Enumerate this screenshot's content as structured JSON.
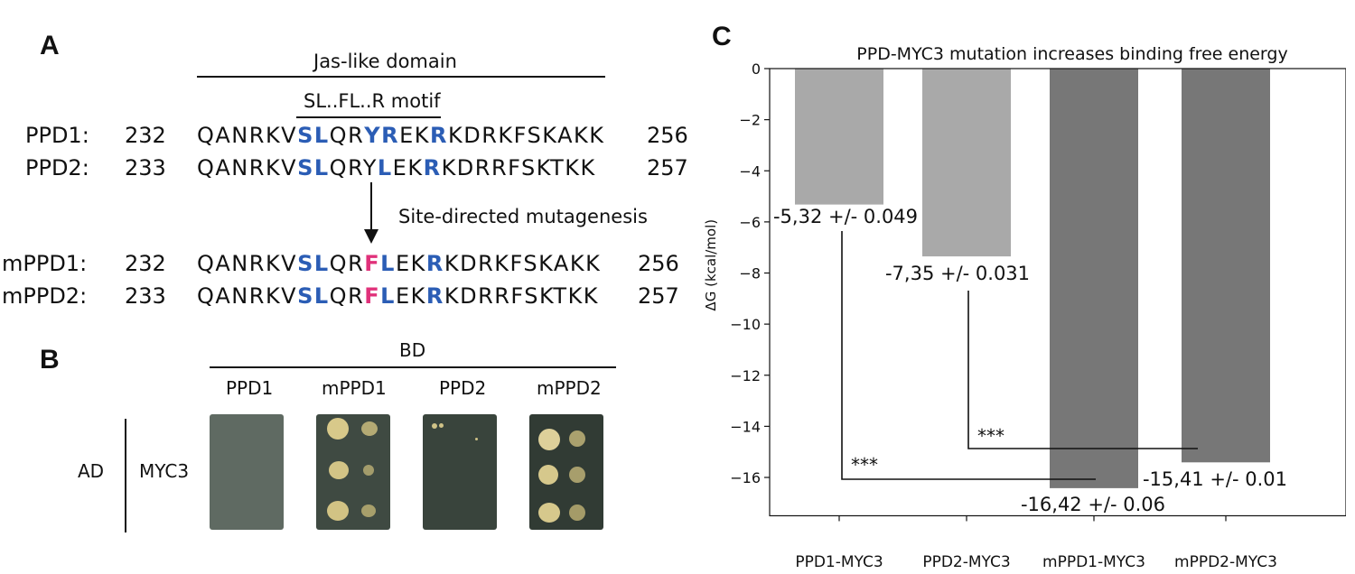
{
  "panelA": {
    "label": "A",
    "domain_label": "Jas-like domain",
    "motif_label": "SL..FL..R motif",
    "mutagenesis_label": "Site-directed mutagenesis",
    "rows": [
      {
        "name": "PPD1:",
        "start": "232",
        "end": "256",
        "segments": [
          [
            "QANRKV",
            "n"
          ],
          [
            "SL",
            "b"
          ],
          [
            "QR",
            "n"
          ],
          [
            "YR",
            "b"
          ],
          [
            "EK",
            "n"
          ],
          [
            "R",
            "b"
          ],
          [
            "KDRKFSKAKK",
            "n"
          ]
        ]
      },
      {
        "name": "PPD2:",
        "start": "233",
        "end": "257",
        "segments": [
          [
            "QANRKV",
            "n"
          ],
          [
            "SL",
            "b"
          ],
          [
            "QRY",
            "n"
          ],
          [
            "L",
            "b"
          ],
          [
            "EK",
            "n"
          ],
          [
            "R",
            "b"
          ],
          [
            "KDRRFSKTKK",
            "n"
          ]
        ]
      },
      {
        "name": "mPPD1:",
        "start": "232",
        "end": "256",
        "segments": [
          [
            "QANRKV",
            "n"
          ],
          [
            "SL",
            "b"
          ],
          [
            "QR",
            "n"
          ],
          [
            "F",
            "p"
          ],
          [
            "L",
            "b"
          ],
          [
            "EK",
            "n"
          ],
          [
            "R",
            "b"
          ],
          [
            "KDRKFSKAKK",
            "n"
          ]
        ]
      },
      {
        "name": "mPPD2:",
        "start": "233",
        "end": "257",
        "segments": [
          [
            "QANRKV",
            "n"
          ],
          [
            "SL",
            "b"
          ],
          [
            "QR",
            "n"
          ],
          [
            "F",
            "p"
          ],
          [
            "L",
            "b"
          ],
          [
            "EK",
            "n"
          ],
          [
            "R",
            "b"
          ],
          [
            "KDRRFSKTKK",
            "n"
          ]
        ]
      }
    ]
  },
  "panelB": {
    "label": "B",
    "bd_label": "BD",
    "ad_label": "AD",
    "row_label": "MYC3",
    "columns": [
      "PPD1",
      "mPPD1",
      "PPD2",
      "mPPD2"
    ]
  },
  "panelC": {
    "label": "C",
    "colors": {
      "light_bar": "#a9a9a9",
      "dark_bar": "#777777"
    },
    "chart_data": {
      "type": "bar",
      "title": "PPD-MYC3 mutation increases binding free energy",
      "ylabel": "ΔG (kcal/mol)",
      "xlabel": "",
      "categories": [
        "PPD1-MYC3",
        "PPD2-MYC3",
        "mPPD1-MYC3",
        "mPPD2-MYC3"
      ],
      "values": [
        -5.32,
        -7.35,
        -16.42,
        -15.41
      ],
      "value_labels": [
        "-5,32 +/- 0.049",
        "-7,35 +/- 0.031",
        "-16,42 +/- 0.06",
        "-15,41 +/- 0.01"
      ],
      "ylim": [
        -17.5,
        0
      ],
      "yticks": [
        0,
        -2,
        -4,
        -6,
        -8,
        -10,
        -12,
        -14,
        -16
      ],
      "ytick_labels": [
        "0",
        "−2",
        "−4",
        "−6",
        "−8",
        "−10",
        "−12",
        "−14",
        "−16"
      ],
      "significance": [
        {
          "from": "PPD1-MYC3",
          "to": "mPPD1-MYC3",
          "label": "***"
        },
        {
          "from": "PPD2-MYC3",
          "to": "mPPD2-MYC3",
          "label": "***"
        }
      ],
      "grid": false
    }
  }
}
